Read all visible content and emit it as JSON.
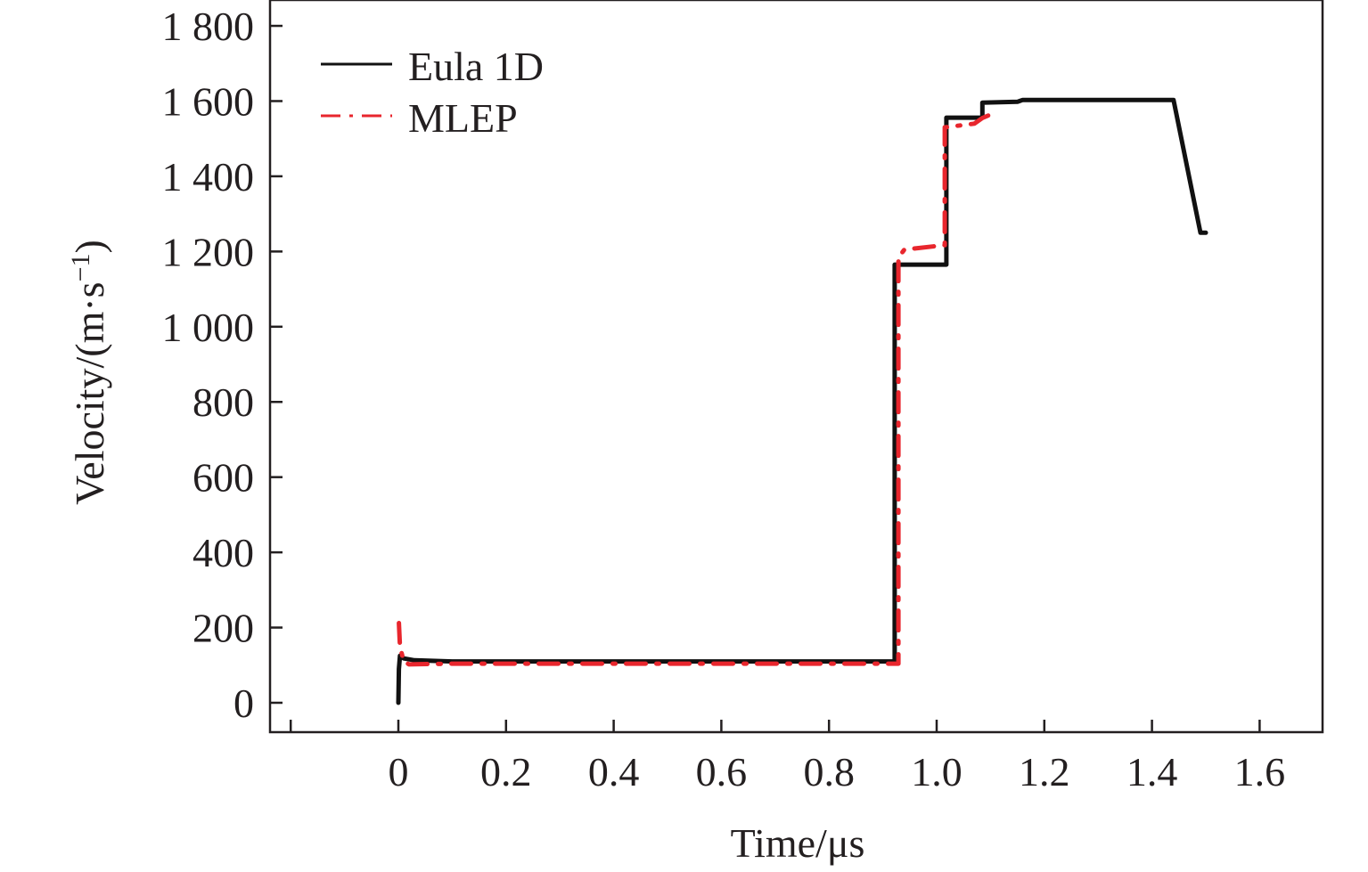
{
  "chart_data": {
    "type": "line",
    "title": "",
    "xlabel": "Time/μs",
    "ylabel": "Velocity/(m·s⁻¹)",
    "xlim": [
      -0.24,
      1.7
    ],
    "ylim": [
      -80,
      1850
    ],
    "xticks": [
      -0.2,
      0,
      0.2,
      0.4,
      0.6,
      0.8,
      1.0,
      1.2,
      1.4,
      1.6
    ],
    "xtick_labels": [
      "",
      "0",
      "0.2",
      "0.4",
      "0.6",
      "0.8",
      "1.0",
      "1.2",
      "1.4",
      "1.6"
    ],
    "yticks": [
      0,
      200,
      400,
      600,
      800,
      1000,
      1200,
      1400,
      1600,
      1800
    ],
    "ytick_labels": [
      "0",
      "200",
      "400",
      "600",
      "800",
      "1 000",
      "1 200",
      "1 400",
      "1 600",
      "1 800"
    ],
    "grid": false,
    "legend_position": "top-left",
    "series": [
      {
        "name": "Eula 1D",
        "color": "#111111",
        "style": "solid",
        "x": [
          0,
          0.001,
          0.003,
          0.01,
          0.03,
          0.1,
          0.922,
          0.922,
          1.018,
          1.018,
          1.085,
          1.085,
          1.15,
          1.16,
          1.44,
          1.49,
          1.5
        ],
        "y": [
          0,
          90,
          125,
          118,
          113,
          110,
          110,
          1165,
          1165,
          1556,
          1556,
          1596,
          1598,
          1603,
          1603,
          1250,
          1250
        ]
      },
      {
        "name": "MLEP",
        "color": "#e8262d",
        "style": "dashdot",
        "x": [
          0.001,
          0.003,
          0.01,
          0.02,
          0.1,
          0.929,
          0.929,
          0.94,
          1.015,
          1.015,
          1.07,
          1.085,
          1.11
        ],
        "y": [
          212,
          150,
          110,
          102,
          104,
          104,
          1184,
          1205,
          1217,
          1530,
          1540,
          1555,
          1570
        ]
      }
    ]
  }
}
